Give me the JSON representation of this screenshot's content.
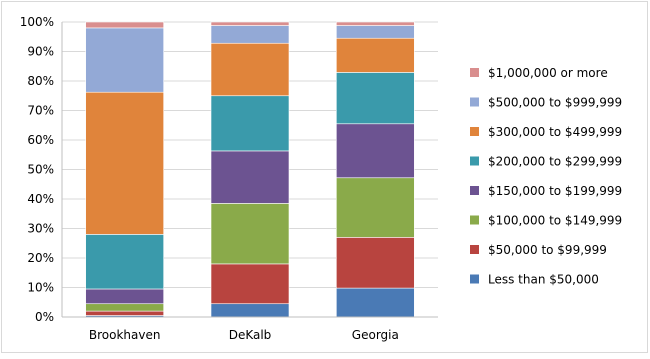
{
  "chart_data": {
    "type": "bar",
    "stacked": true,
    "categories": [
      "Brookhaven",
      "DeKalb",
      "Georgia"
    ],
    "y_ticks": [
      "0%",
      "10%",
      "20%",
      "30%",
      "40%",
      "50%",
      "60%",
      "70%",
      "80%",
      "90%",
      "100%"
    ],
    "ylim": [
      0,
      100
    ],
    "grid": true,
    "legend_position": "right",
    "series": [
      {
        "name": "Less than $50,000",
        "color": "#4a7ab5",
        "values": [
          0.5,
          4.5,
          9.8
        ]
      },
      {
        "name": "$50,000 to $99,999",
        "color": "#b8443f",
        "values": [
          1.5,
          13.5,
          17.2
        ]
      },
      {
        "name": "$100,000 to $149,999",
        "color": "#8aaa4a",
        "values": [
          2.5,
          20.5,
          20.2
        ]
      },
      {
        "name": "$150,000 to $199,999",
        "color": "#6c5391",
        "values": [
          5.0,
          17.8,
          18.3
        ]
      },
      {
        "name": "$200,000 to $299,999",
        "color": "#3a9aab",
        "values": [
          18.5,
          18.7,
          17.4
        ]
      },
      {
        "name": "$300,000 to $499,999",
        "color": "#e0843b",
        "values": [
          48.2,
          17.8,
          11.6
        ]
      },
      {
        "name": "$500,000 to $999,999",
        "color": "#93a9d6",
        "values": [
          21.8,
          6.0,
          4.3
        ]
      },
      {
        "name": "$1,000,000 or more",
        "color": "#d98e8e",
        "values": [
          2.0,
          1.2,
          1.2
        ]
      }
    ]
  }
}
